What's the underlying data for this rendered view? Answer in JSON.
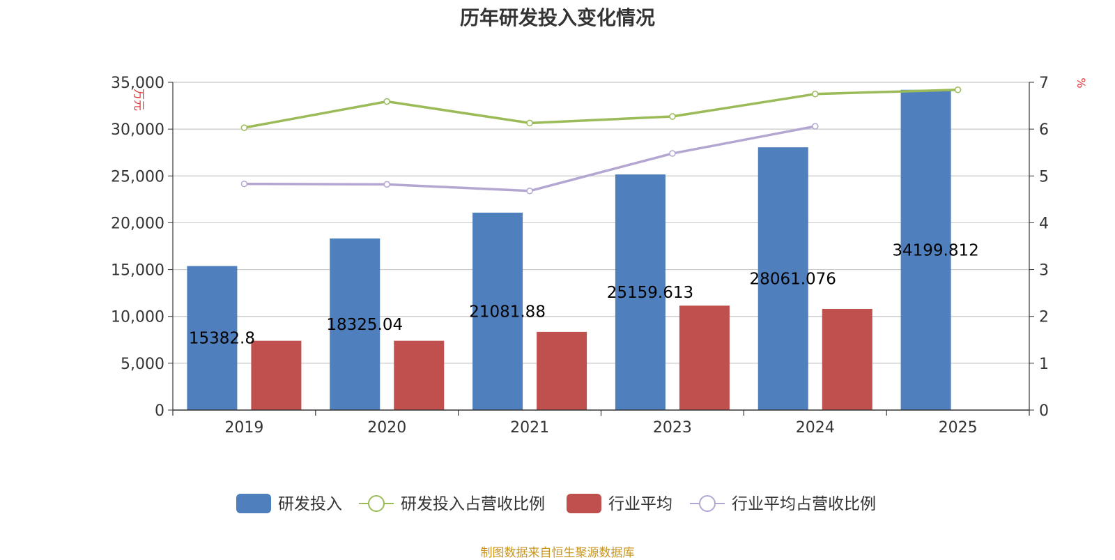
{
  "title": "历年研发投入变化情况",
  "footer": "制图数据来自恒生聚源数据库",
  "chart_data": {
    "type": "bar",
    "title": "历年研发投入变化情况",
    "categories": [
      "2019",
      "2020",
      "2021",
      "2023",
      "2024",
      "2025"
    ],
    "left_axis": {
      "unit_label": "万元",
      "ylim": [
        0,
        35000
      ],
      "ticks": [
        "0",
        "5,000",
        "10,000",
        "15,000",
        "20,000",
        "25,000",
        "30,000",
        "35,000"
      ]
    },
    "right_axis": {
      "unit_label": "%",
      "ylim": [
        0,
        7
      ],
      "ticks": [
        "0",
        "1",
        "2",
        "3",
        "4",
        "5",
        "6",
        "7"
      ]
    },
    "series": [
      {
        "name": "研发投入",
        "type": "bar",
        "axis": "left",
        "color": "#4f7fbd",
        "values": [
          15382.8,
          18325.04,
          21081.88,
          25159.613,
          28061.076,
          34199.812
        ],
        "labels": [
          "15382.8",
          "18325.04",
          "21081.88",
          "25159.613",
          "28061.076",
          "34199.812"
        ]
      },
      {
        "name": "研发投入占营收比例",
        "type": "line",
        "axis": "right",
        "color": "#9bbb59",
        "values": [
          6.03,
          6.59,
          6.13,
          6.27,
          6.75,
          6.84
        ]
      },
      {
        "name": "行业平均",
        "type": "bar",
        "axis": "left",
        "color": "#c0504d",
        "values": [
          7400,
          7400,
          8350,
          11150,
          10800,
          null
        ]
      },
      {
        "name": "行业平均占营收比例",
        "type": "line",
        "axis": "right",
        "color": "#b3a6d1",
        "values": [
          4.83,
          4.82,
          4.68,
          5.48,
          6.06,
          null
        ]
      }
    ],
    "grid": true,
    "legend": "bottom-center"
  }
}
